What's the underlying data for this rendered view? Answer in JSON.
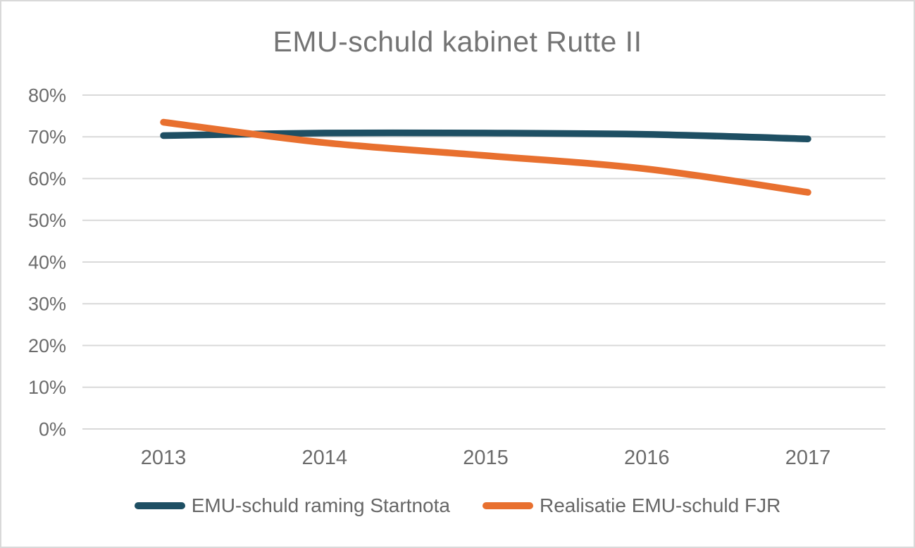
{
  "chart_data": {
    "type": "line",
    "title": "EMU-schuld kabinet Rutte II",
    "x": [
      "2013",
      "2014",
      "2015",
      "2016",
      "2017"
    ],
    "series": [
      {
        "name": "EMU-schuld raming Startnota",
        "color": "#1E4F63",
        "values": [
          70.3,
          70.9,
          70.9,
          70.6,
          69.5
        ]
      },
      {
        "name": "Realisatie EMU-schuld FJR",
        "color": "#E8702F",
        "values": [
          73.5,
          68.6,
          65.5,
          62.3,
          56.7
        ]
      }
    ],
    "ylim": [
      0,
      80
    ],
    "y_ticks": [
      {
        "value": 0,
        "label": "0%"
      },
      {
        "value": 10,
        "label": "10%"
      },
      {
        "value": 20,
        "label": "20%"
      },
      {
        "value": 30,
        "label": "30%"
      },
      {
        "value": 40,
        "label": "40%"
      },
      {
        "value": 50,
        "label": "50%"
      },
      {
        "value": 60,
        "label": "60%"
      },
      {
        "value": 70,
        "label": "70%"
      },
      {
        "value": 80,
        "label": "80%"
      }
    ],
    "grid": "horizontal",
    "smoothed_lines": true,
    "legend_position": "bottom"
  },
  "colors": {
    "gridline": "#D9D9D9",
    "frame_border": "#D9D9D9",
    "title_text": "#747474",
    "axis_text": "#6B6B6B",
    "legend_text": "#666666",
    "background": "#FFFFFF"
  }
}
